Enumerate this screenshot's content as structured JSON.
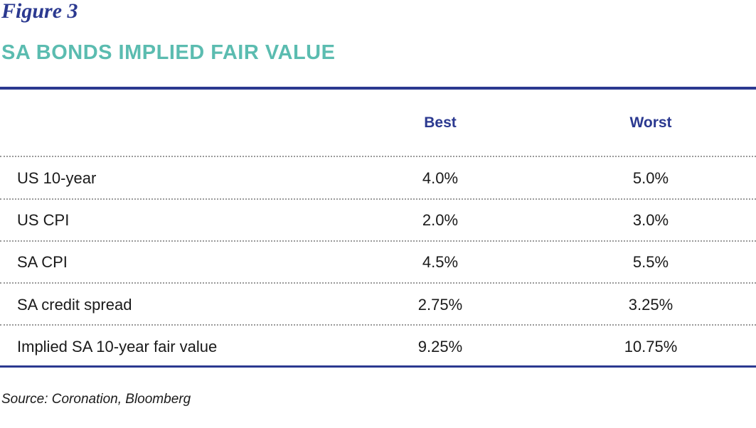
{
  "figure": {
    "label": "Figure 3",
    "title": "SA BONDS IMPLIED FAIR VALUE"
  },
  "table": {
    "columns": [
      "",
      "Best",
      "Worst"
    ],
    "rows": [
      {
        "label": "US 10-year",
        "best": "4.0%",
        "worst": "5.0%"
      },
      {
        "label": "US CPI",
        "best": "2.0%",
        "worst": "3.0%"
      },
      {
        "label": "SA CPI",
        "best": "4.5%",
        "worst": "5.5%"
      },
      {
        "label": "SA credit spread",
        "best": "2.75%",
        "worst": "3.25%"
      },
      {
        "label": "Implied SA 10-year fair value",
        "best": "9.25%",
        "worst": "10.75%"
      }
    ]
  },
  "source": "Source: Coronation, Bloomberg",
  "colors": {
    "accent_blue": "#2b3990",
    "title_teal": "#5bbcb0"
  }
}
